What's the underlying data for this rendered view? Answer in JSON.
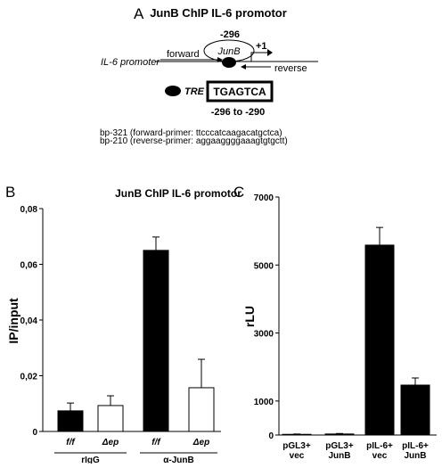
{
  "diagram": {
    "label": "A",
    "title": "JunB ChIP IL-6 promotor",
    "position": "-296",
    "factor": "JunB",
    "start": "+1",
    "forward": "forward",
    "promoter": "IL-6 promoter",
    "reverse": "reverse",
    "tre": "TRE",
    "sequence": "TGAGTCA",
    "range": "-296 to -290",
    "primers": [
      "bp-321 (forward-primer: ttcccatcaagacatgctca)",
      "bp-210 (reverse-primer: aggaaggggaaagtgtgctt)"
    ]
  },
  "chart_data": [
    {
      "type": "bar",
      "label": "B",
      "title": "JunB ChIP IL-6 promotor",
      "y_label": "IP/input",
      "categories": [
        [
          "f/f"
        ],
        [
          "Δep"
        ],
        [
          "f/f"
        ],
        [
          "Δep"
        ]
      ],
      "groups": [
        {
          "name": "rIgG",
          "members": [
            0,
            1
          ]
        },
        {
          "name": "α-JunB",
          "members": [
            2,
            3
          ]
        }
      ],
      "values": [
        0.0074,
        0.0093,
        0.065,
        0.0157
      ],
      "errors": [
        0.0028,
        0.0035,
        0.0048,
        0.0102
      ],
      "colors": [
        "#000000",
        "#ffffff",
        "#000000",
        "#ffffff"
      ],
      "ylim": [
        0,
        0.08
      ],
      "yticks": [
        0,
        {
          "value": 0.02,
          "label": "0,02"
        },
        {
          "value": 0.04,
          "label": "0,04"
        },
        {
          "value": 0.06,
          "label": "0,06"
        },
        {
          "value": 0.08,
          "label": "0,08"
        }
      ]
    },
    {
      "type": "bar",
      "label": "C",
      "y_label": "rLU",
      "categories": [
        [
          "pGL3+",
          "vec"
        ],
        [
          "pGL3+",
          "JunB"
        ],
        [
          "pIL-6+",
          "vec"
        ],
        [
          "pIL-6+",
          "JunB"
        ]
      ],
      "values": [
        20,
        30,
        5585,
        1468
      ],
      "errors": [
        10,
        15,
        520,
        210
      ],
      "colors": [
        "#000000",
        "#000000",
        "#000000",
        "#000000"
      ],
      "ylim": [
        0,
        7000
      ],
      "yticks": [
        0,
        1000,
        3000,
        5000,
        7000
      ]
    }
  ]
}
